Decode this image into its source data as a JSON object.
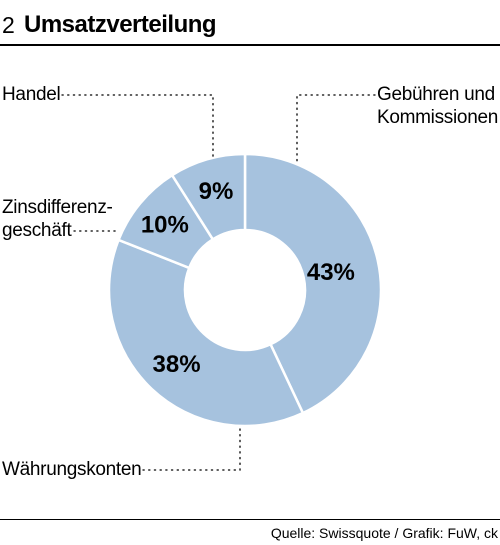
{
  "header": {
    "number": "2",
    "title": "Umsatzverteilung"
  },
  "colors": {
    "slice": "#a6c2de",
    "stroke": "#ffffff",
    "text": "#000000"
  },
  "chart_data": {
    "type": "pie",
    "donut": true,
    "categories": [
      "Gebühren und Kommissionen",
      "Währungskonten",
      "Zinsdifferenzgeschäft",
      "Handel"
    ],
    "values": [
      43,
      38,
      10,
      9
    ],
    "data_labels": [
      "43%",
      "38%",
      "10%",
      "9%"
    ],
    "legend_labels": {
      "handel": "Handel",
      "gebuehren_line1": "Gebühren und",
      "gebuehren_line2": "Kommissionen",
      "zins_line1": "Zinsdifferenz-",
      "zins_line2": "geschäft",
      "waehrung": "Währungskonten"
    },
    "title": "Umsatzverteilung"
  },
  "footer": {
    "source": "Quelle: Swissquote / Grafik: FuW, ck"
  }
}
